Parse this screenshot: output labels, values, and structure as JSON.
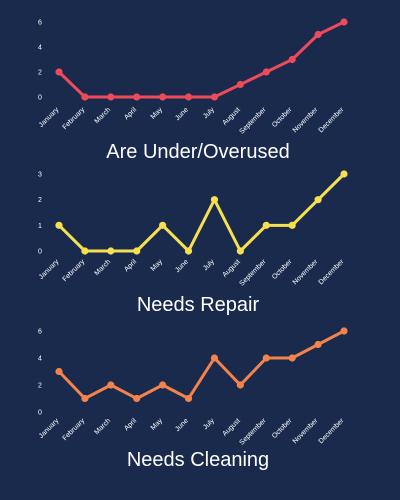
{
  "months": [
    "January",
    "February",
    "March",
    "April",
    "May",
    "June",
    "July",
    "August",
    "September",
    "October",
    "November",
    "December"
  ],
  "chart_data": [
    {
      "type": "line",
      "title": "Are Under/Overused",
      "color": "#ee4b5a",
      "ylim": [
        0,
        6
      ],
      "yticks": [
        "0",
        "2",
        "4",
        "6"
      ],
      "values": [
        2,
        0,
        0,
        0,
        0,
        0,
        0,
        1,
        2,
        3,
        5,
        6
      ]
    },
    {
      "type": "line",
      "title": "Needs Repair",
      "color": "#f7e04f",
      "ylim": [
        0,
        3
      ],
      "yticks": [
        "0",
        "1",
        "2",
        "3"
      ],
      "values": [
        1,
        0,
        0,
        0,
        1,
        0,
        2,
        0,
        1,
        1,
        2,
        3
      ]
    },
    {
      "type": "line",
      "title": "Needs Cleaning",
      "color": "#f3834a",
      "ylim": [
        0,
        6
      ],
      "yticks": [
        "0",
        "2",
        "4",
        "6"
      ],
      "values": [
        3,
        1,
        2,
        1,
        2,
        1,
        4,
        2,
        4,
        4,
        5,
        6
      ]
    }
  ]
}
